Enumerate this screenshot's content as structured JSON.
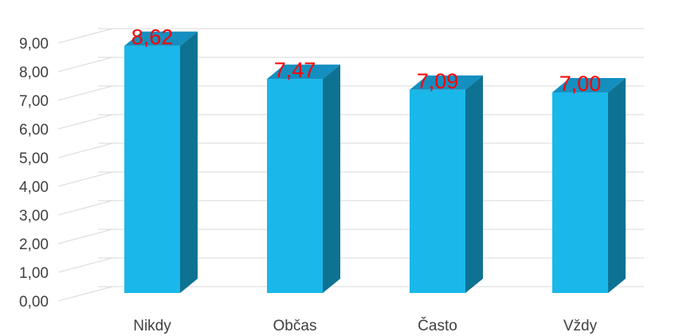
{
  "chart_data": {
    "type": "bar",
    "style": "3d-column",
    "categories": [
      "Nikdy",
      "Občas",
      "Často",
      "Vždy"
    ],
    "values": [
      8.62,
      7.47,
      7.09,
      7.0
    ],
    "value_labels": [
      "8,62",
      "7,47",
      "7,09",
      "7,00"
    ],
    "title": "",
    "xlabel": "",
    "ylabel": "",
    "ylim": [
      0,
      9
    ],
    "y_ticks": [
      0,
      1,
      2,
      3,
      4,
      5,
      6,
      7,
      8,
      9
    ],
    "y_tick_labels": [
      "0,00",
      "1,00",
      "2,00",
      "3,00",
      "4,00",
      "5,00",
      "6,00",
      "7,00",
      "8,00",
      "9,00"
    ],
    "grid": true,
    "legend": "none",
    "colors": {
      "bar_front": "#1ab7ea",
      "bar_side": "#0e7293",
      "bar_top": "#148fc0",
      "data_label": "#ff0000",
      "grid": "#d9d9d9",
      "axis_text": "#404040"
    }
  }
}
